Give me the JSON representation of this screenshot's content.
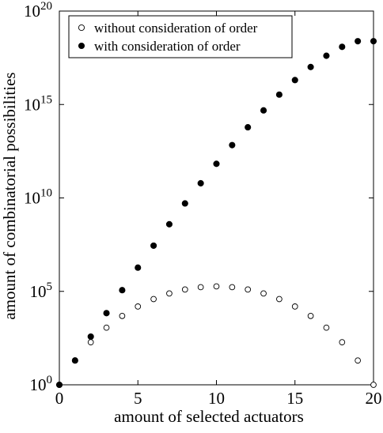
{
  "chart_data": {
    "type": "scatter",
    "xlabel": "amount of selected actuators",
    "ylabel": "amount of combinatorial possibilities",
    "xlim": [
      0,
      20
    ],
    "ylim_log10": [
      0,
      20
    ],
    "yscale": "log",
    "x_ticks": [
      "0",
      "5",
      "10",
      "15",
      "20"
    ],
    "y_ticks": [
      {
        "base": "10",
        "exp": "0"
      },
      {
        "base": "10",
        "exp": "5"
      },
      {
        "base": "10",
        "exp": "10"
      },
      {
        "base": "10",
        "exp": "15"
      },
      {
        "base": "10",
        "exp": "20"
      }
    ],
    "legend_position": "top-left",
    "grid": false,
    "series": [
      {
        "name": "without consideration of order",
        "marker": "open-circle",
        "x": [
          0,
          1,
          2,
          3,
          4,
          5,
          6,
          7,
          8,
          9,
          10,
          11,
          12,
          13,
          14,
          15,
          16,
          17,
          18,
          19,
          20
        ],
        "y": [
          1,
          20,
          190,
          1140,
          4845,
          15504,
          38760,
          77520,
          125970,
          167960,
          184756,
          167960,
          125970,
          77520,
          38760,
          15504,
          4845,
          1140,
          190,
          20,
          1
        ]
      },
      {
        "name": "with consideration of order",
        "marker": "filled-circle",
        "x": [
          0,
          1,
          2,
          3,
          4,
          5,
          6,
          7,
          8,
          9,
          10,
          11,
          12,
          13,
          14,
          15,
          16,
          17,
          18,
          19,
          20
        ],
        "y": [
          1,
          20,
          380,
          6840,
          116280,
          1860480,
          27907200,
          390700800,
          5079110400,
          60949324800,
          670442572800,
          6704425728000,
          60339831552000,
          482718652416000,
          3379030566912000,
          20274183401472000,
          101370917007360000,
          405483668029440000,
          1216451004088320000,
          2432902008176640000,
          2432902008176640000
        ]
      }
    ]
  }
}
